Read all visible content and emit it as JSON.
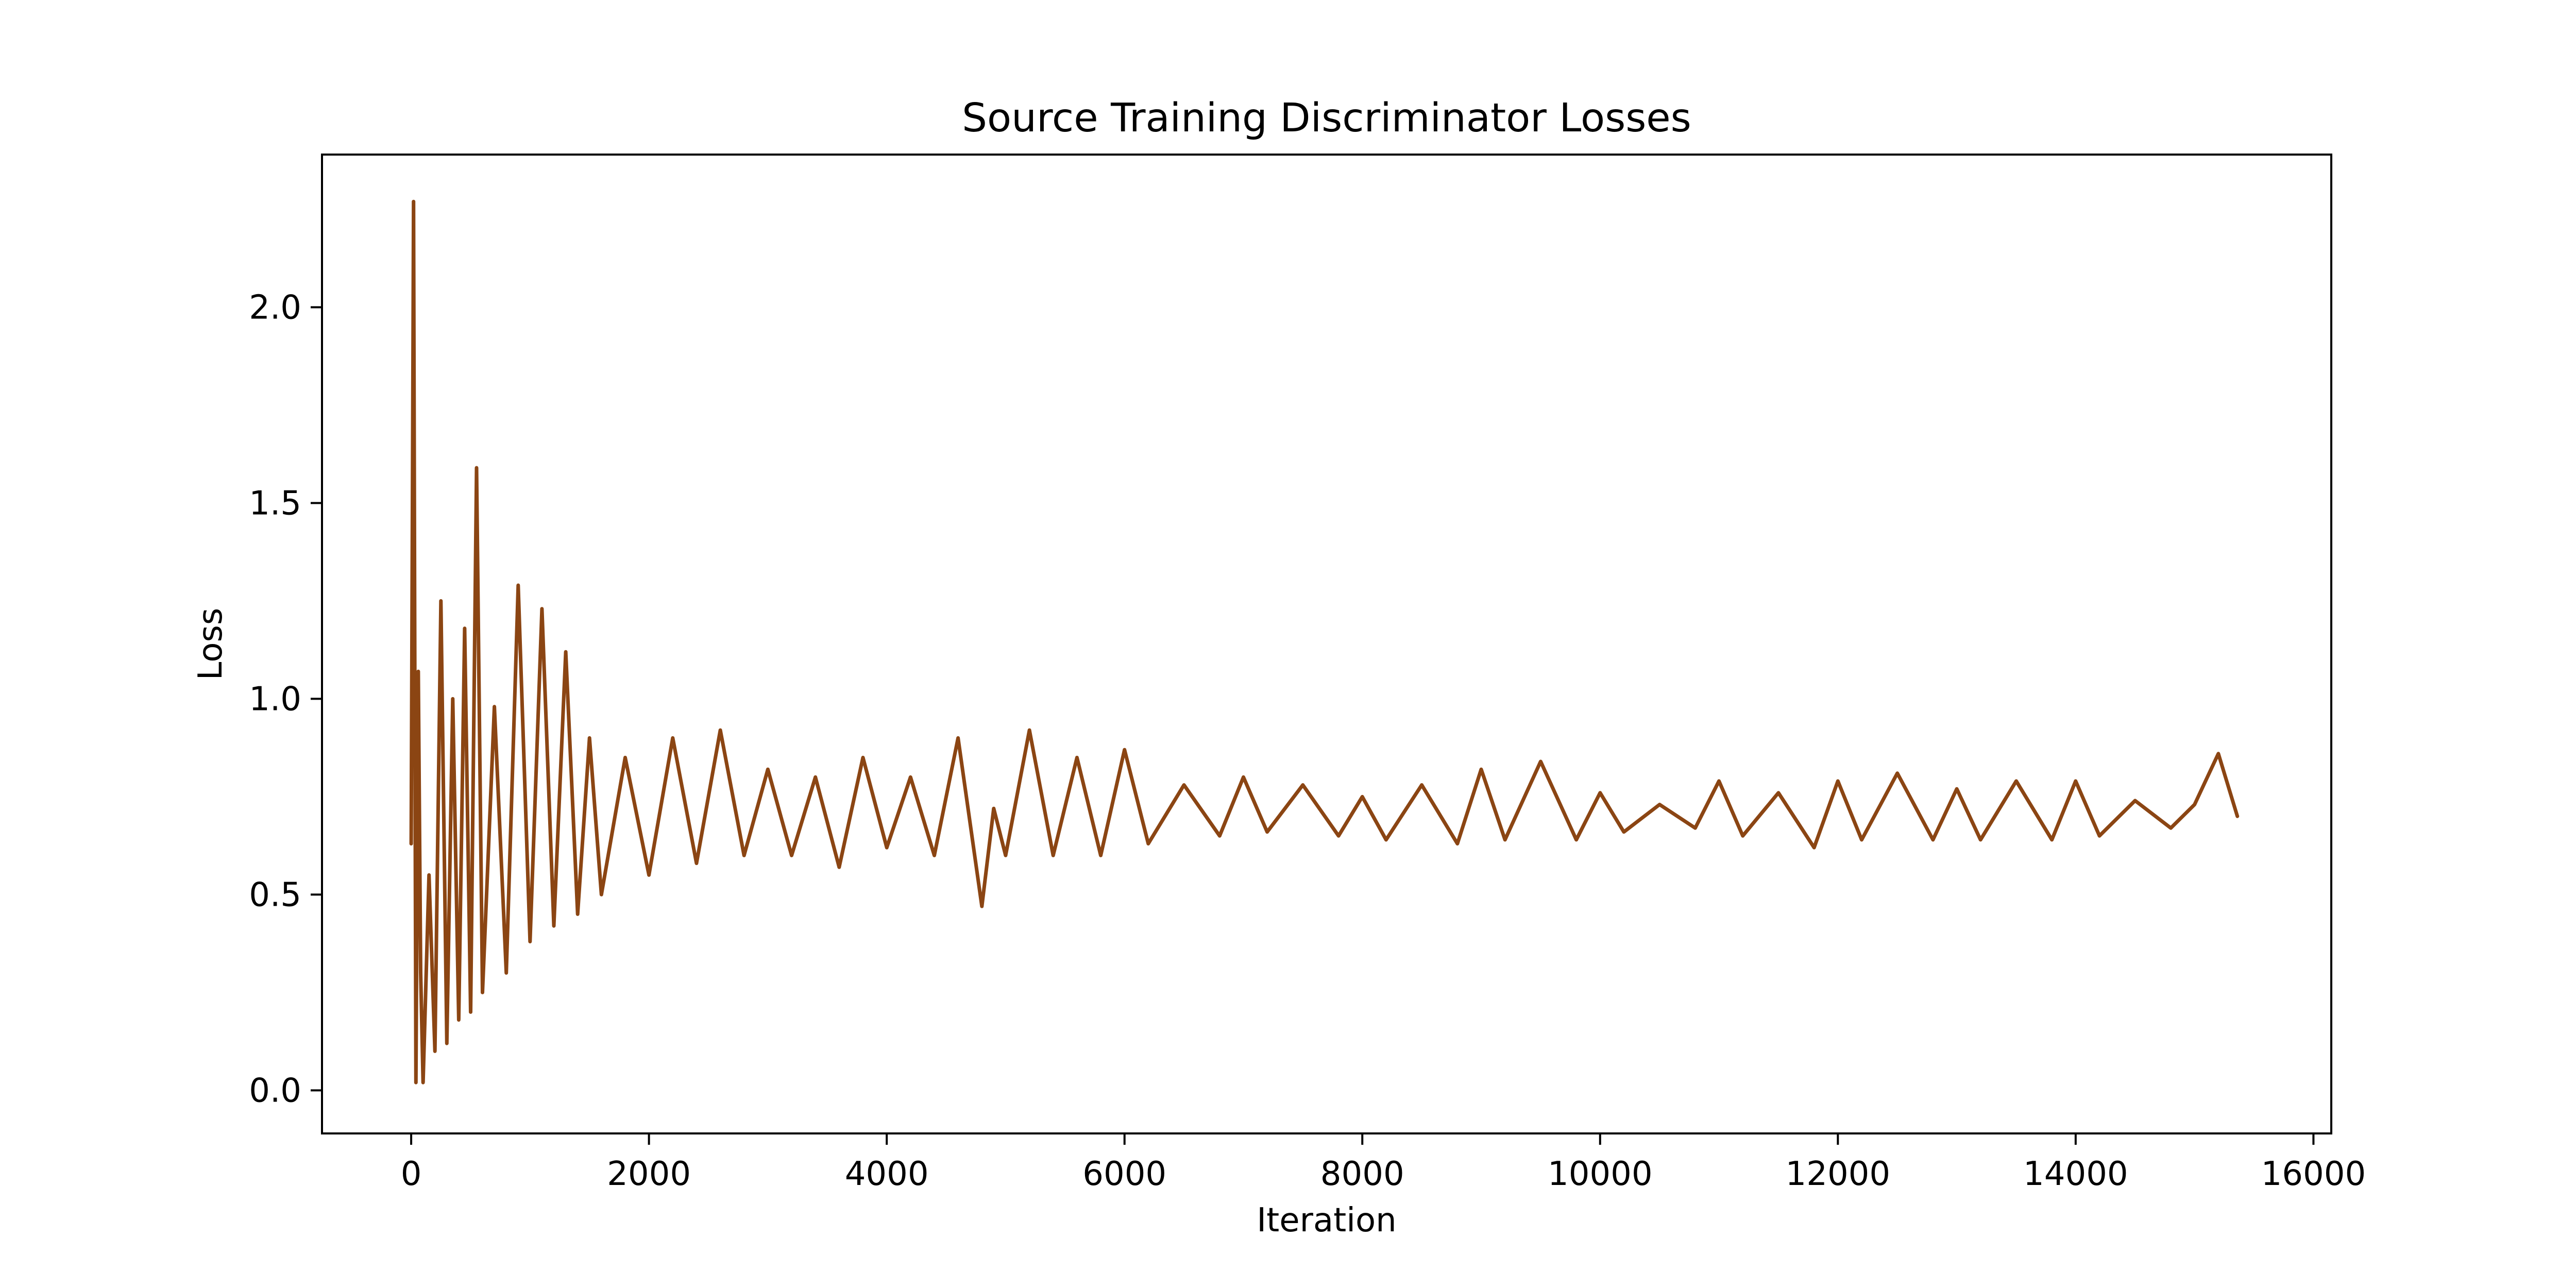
{
  "chart_data": {
    "type": "line",
    "title": "Source Training Discriminator Losses",
    "xlabel": "Iteration",
    "ylabel": "Loss",
    "xlim": [
      -750,
      16150
    ],
    "ylim": [
      -0.11,
      2.39
    ],
    "xticks": [
      0,
      2000,
      4000,
      6000,
      8000,
      10000,
      12000,
      14000,
      16000
    ],
    "xtick_labels": [
      "0",
      "2000",
      "4000",
      "6000",
      "8000",
      "10000",
      "12000",
      "14000",
      "16000"
    ],
    "yticks": [
      0.0,
      0.5,
      1.0,
      1.5,
      2.0
    ],
    "ytick_labels": [
      "0.0",
      "0.5",
      "1.0",
      "1.5",
      "2.0"
    ],
    "grid": false,
    "legend": "none",
    "line_color": "#8B4513",
    "series": [
      {
        "x": [
          0,
          20,
          40,
          60,
          80,
          100,
          150,
          200,
          250,
          300,
          350,
          400,
          450,
          500,
          550,
          600,
          700,
          800,
          900,
          1000,
          1100,
          1200,
          1300,
          1400,
          1500,
          1600,
          1800,
          2000,
          2200,
          2400,
          2600,
          2800,
          3000,
          3200,
          3400,
          3600,
          3800,
          4000,
          4200,
          4400,
          4600,
          4800,
          4900,
          5000,
          5200,
          5400,
          5600,
          5800,
          6000,
          6200,
          6500,
          6800,
          7000,
          7200,
          7500,
          7800,
          8000,
          8200,
          8500,
          8800,
          9000,
          9200,
          9500,
          9800,
          10000,
          10200,
          10500,
          10800,
          11000,
          11200,
          11500,
          11800,
          12000,
          12200,
          12500,
          12800,
          13000,
          13200,
          13500,
          13800,
          14000,
          14200,
          14500,
          14800,
          15000,
          15200,
          15360
        ],
        "y": [
          0.63,
          2.27,
          0.02,
          1.07,
          0.3,
          0.02,
          0.55,
          0.1,
          1.25,
          0.12,
          1.0,
          0.18,
          1.18,
          0.2,
          1.59,
          0.25,
          0.98,
          0.3,
          1.29,
          0.38,
          1.23,
          0.42,
          1.12,
          0.45,
          0.9,
          0.5,
          0.85,
          0.55,
          0.9,
          0.58,
          0.92,
          0.6,
          0.82,
          0.6,
          0.8,
          0.57,
          0.85,
          0.62,
          0.8,
          0.6,
          0.9,
          0.47,
          0.72,
          0.6,
          0.92,
          0.6,
          0.85,
          0.6,
          0.87,
          0.63,
          0.78,
          0.65,
          0.8,
          0.66,
          0.78,
          0.65,
          0.75,
          0.64,
          0.78,
          0.63,
          0.82,
          0.64,
          0.84,
          0.64,
          0.76,
          0.66,
          0.73,
          0.67,
          0.79,
          0.65,
          0.76,
          0.62,
          0.79,
          0.64,
          0.81,
          0.64,
          0.77,
          0.64,
          0.79,
          0.64,
          0.79,
          0.65,
          0.74,
          0.67,
          0.73,
          0.86,
          0.7
        ]
      }
    ]
  }
}
